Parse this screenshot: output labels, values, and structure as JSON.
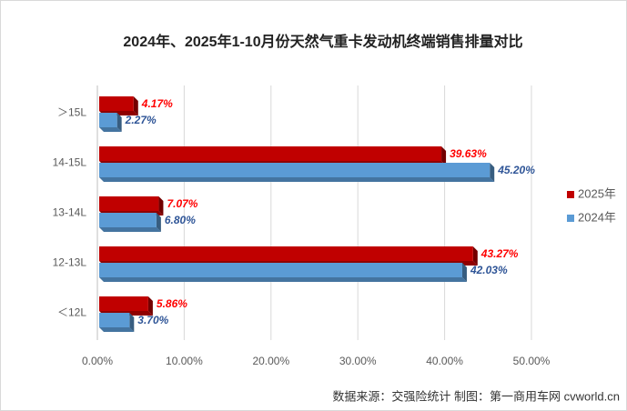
{
  "chart_data": {
    "type": "bar",
    "orientation": "horizontal",
    "title": "2024年、2025年1-10月份天然气重卡发动机终端销售排量对比",
    "categories": [
      "＞15L",
      "14-15L",
      "13-14L",
      "12-13L",
      "＜12L"
    ],
    "series": [
      {
        "name": "2025年",
        "color": "#c00000",
        "label_color": "#ff0000",
        "values": [
          4.17,
          39.63,
          7.07,
          43.27,
          5.86
        ],
        "value_labels": [
          "4.17%",
          "39.63%",
          "7.07%",
          "43.27%",
          "5.86%"
        ]
      },
      {
        "name": "2024年",
        "color": "#5b9bd5",
        "label_color": "#2f5597",
        "values": [
          2.27,
          45.2,
          6.8,
          42.03,
          3.7
        ],
        "value_labels": [
          "2.27%",
          "45.20%",
          "6.80%",
          "42.03%",
          "3.70%"
        ]
      }
    ],
    "xlim": [
      0,
      50
    ],
    "xticks": [
      {
        "value": 0,
        "label": "0.00%"
      },
      {
        "value": 10,
        "label": "10.00%"
      },
      {
        "value": 20,
        "label": "20.00%"
      },
      {
        "value": 30,
        "label": "30.00%"
      },
      {
        "value": 40,
        "label": "40.00%"
      },
      {
        "value": 50,
        "label": "50.00%"
      }
    ],
    "grid": true,
    "legend": "right",
    "source": "数据来源：交强险统计    制图：第一商用车网 cvworld.cn"
  }
}
